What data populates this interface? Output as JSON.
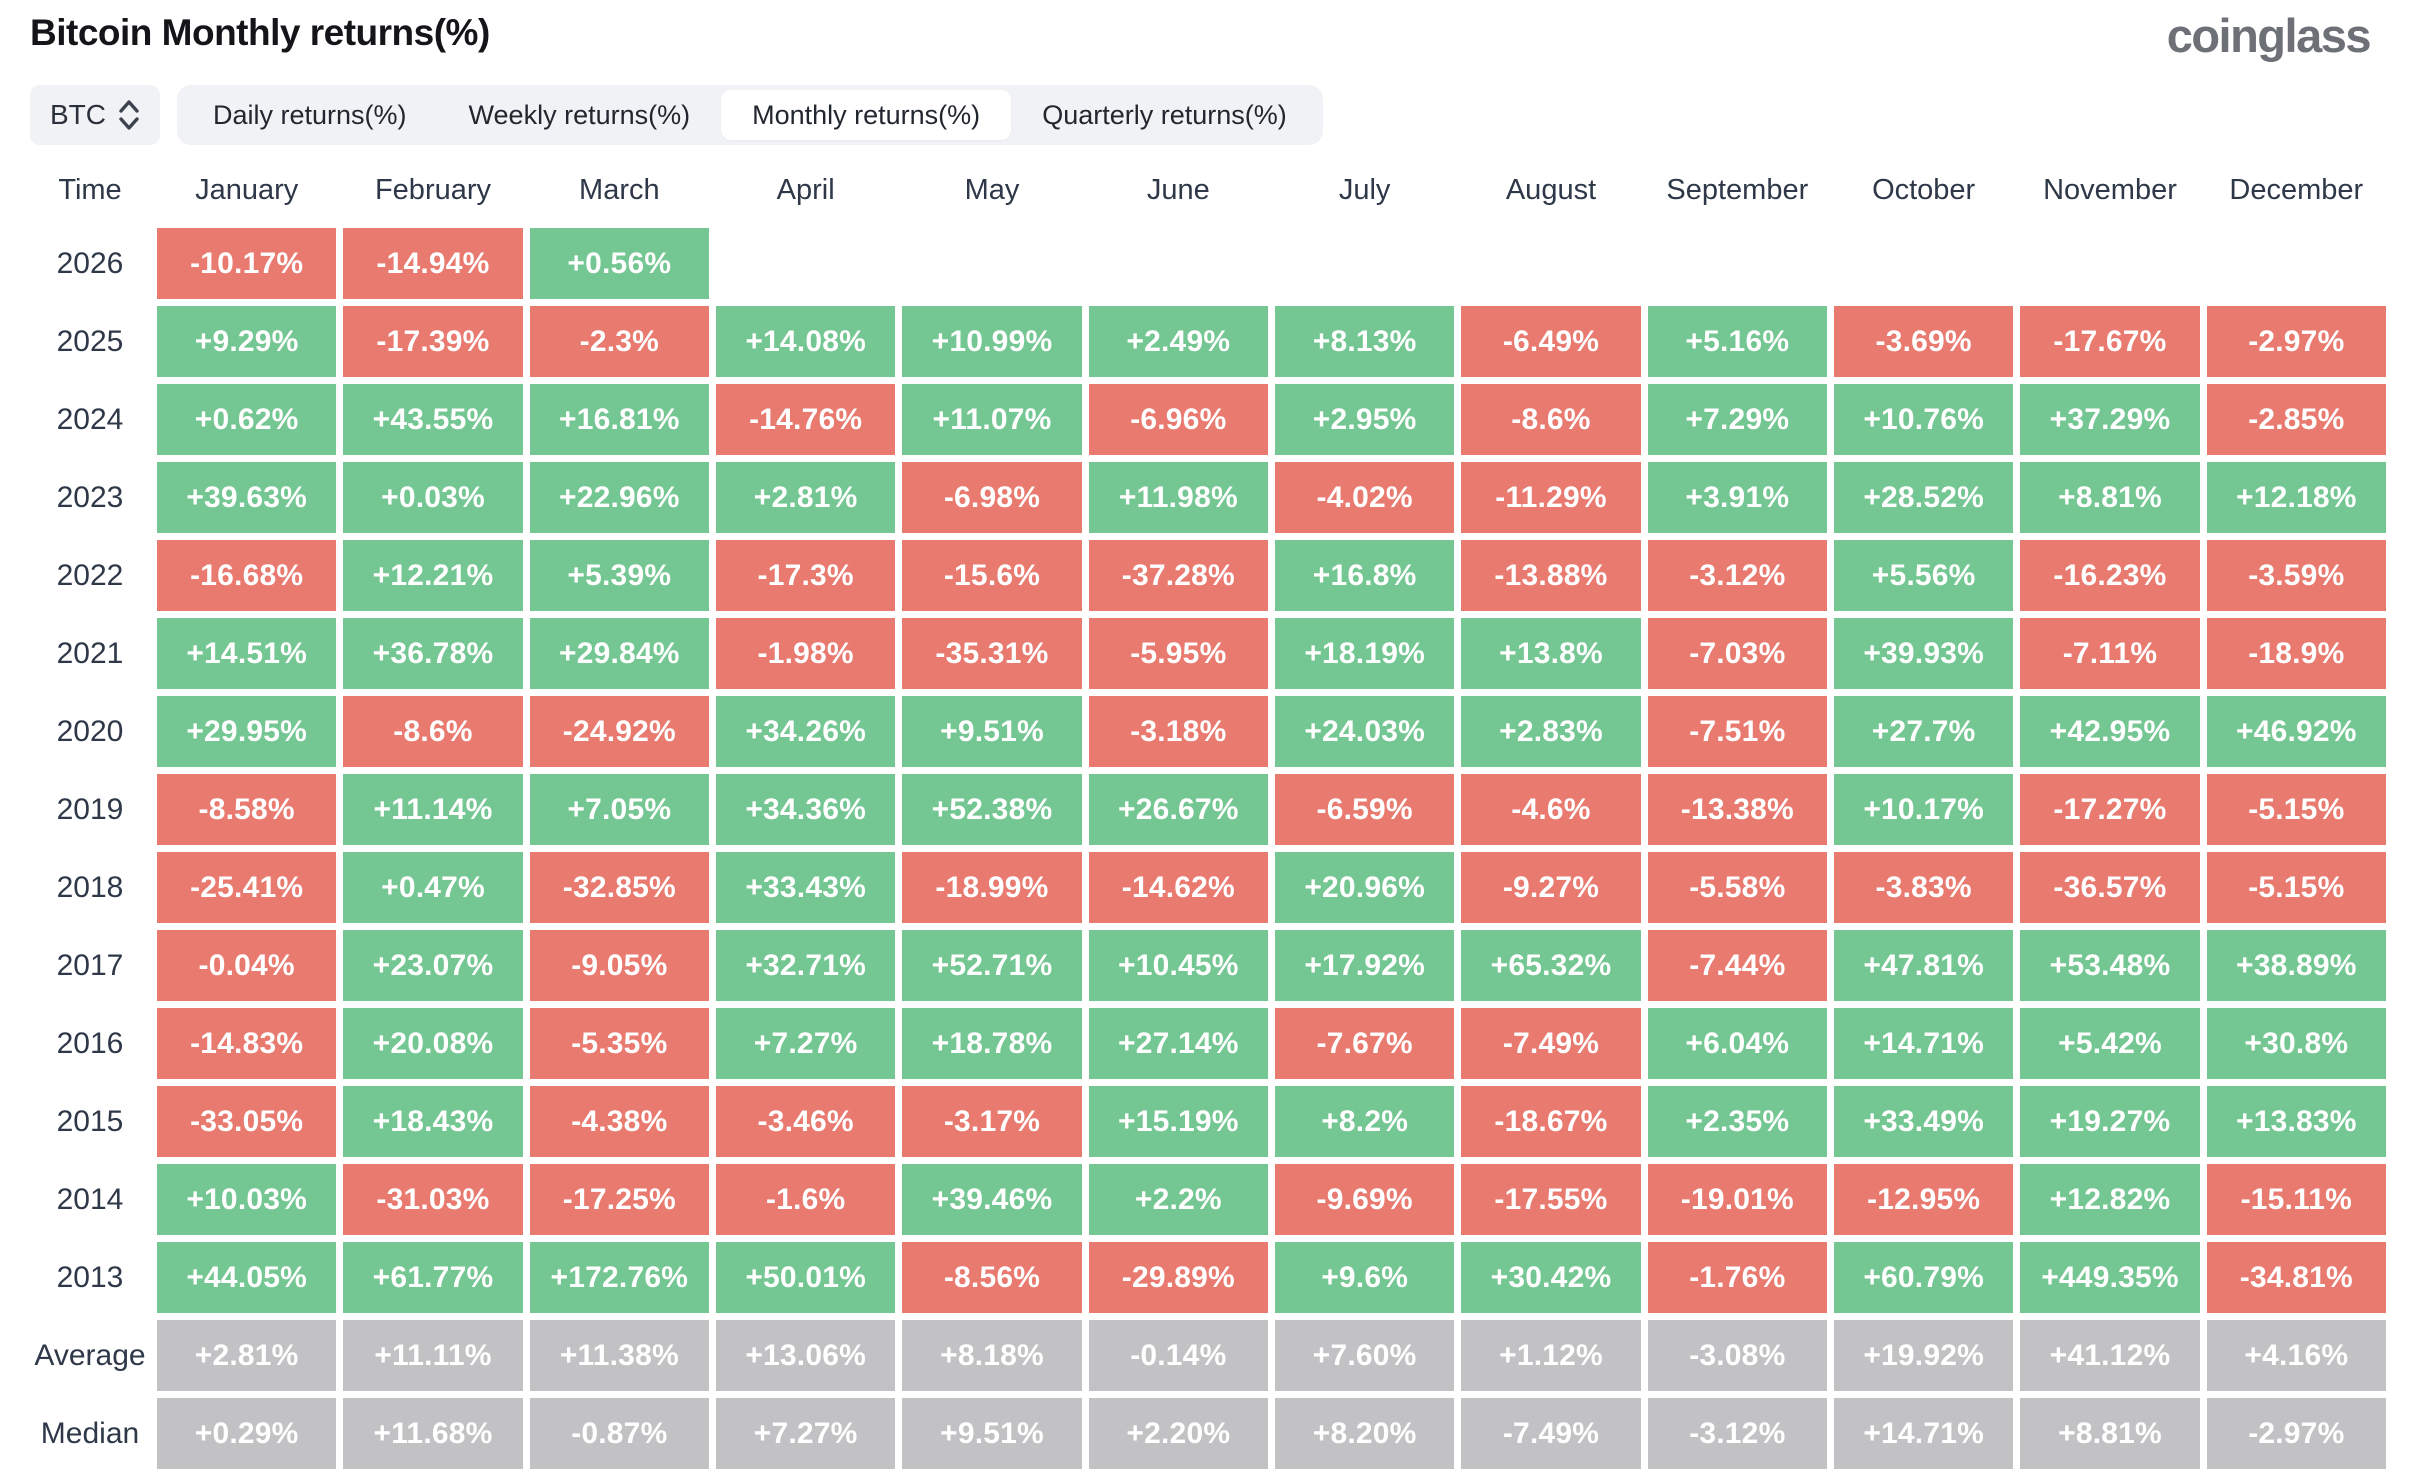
{
  "header": {
    "title": "Bitcoin Monthly returns(%)",
    "logo": "coinglass"
  },
  "controls": {
    "symbol_select": {
      "label": "BTC",
      "icon": "updown-chevrons-icon"
    },
    "tabs": [
      {
        "label": "Daily returns(%)",
        "active": false
      },
      {
        "label": "Weekly returns(%)",
        "active": false
      },
      {
        "label": "Monthly returns(%)",
        "active": true
      },
      {
        "label": "Quarterly returns(%)",
        "active": false
      }
    ]
  },
  "table": {
    "time_header": "Time",
    "month_headers": [
      "January",
      "February",
      "March",
      "April",
      "May",
      "June",
      "July",
      "August",
      "September",
      "October",
      "November",
      "December"
    ],
    "rows": [
      {
        "label": "2026",
        "type": "year",
        "values": [
          "-10.17%",
          "-14.94%",
          "+0.56%",
          null,
          null,
          null,
          null,
          null,
          null,
          null,
          null,
          null
        ]
      },
      {
        "label": "2025",
        "type": "year",
        "values": [
          "+9.29%",
          "-17.39%",
          "-2.3%",
          "+14.08%",
          "+10.99%",
          "+2.49%",
          "+8.13%",
          "-6.49%",
          "+5.16%",
          "-3.69%",
          "-17.67%",
          "-2.97%"
        ]
      },
      {
        "label": "2024",
        "type": "year",
        "values": [
          "+0.62%",
          "+43.55%",
          "+16.81%",
          "-14.76%",
          "+11.07%",
          "-6.96%",
          "+2.95%",
          "-8.6%",
          "+7.29%",
          "+10.76%",
          "+37.29%",
          "-2.85%"
        ]
      },
      {
        "label": "2023",
        "type": "year",
        "values": [
          "+39.63%",
          "+0.03%",
          "+22.96%",
          "+2.81%",
          "-6.98%",
          "+11.98%",
          "-4.02%",
          "-11.29%",
          "+3.91%",
          "+28.52%",
          "+8.81%",
          "+12.18%"
        ]
      },
      {
        "label": "2022",
        "type": "year",
        "values": [
          "-16.68%",
          "+12.21%",
          "+5.39%",
          "-17.3%",
          "-15.6%",
          "-37.28%",
          "+16.8%",
          "-13.88%",
          "-3.12%",
          "+5.56%",
          "-16.23%",
          "-3.59%"
        ]
      },
      {
        "label": "2021",
        "type": "year",
        "values": [
          "+14.51%",
          "+36.78%",
          "+29.84%",
          "-1.98%",
          "-35.31%",
          "-5.95%",
          "+18.19%",
          "+13.8%",
          "-7.03%",
          "+39.93%",
          "-7.11%",
          "-18.9%"
        ]
      },
      {
        "label": "2020",
        "type": "year",
        "values": [
          "+29.95%",
          "-8.6%",
          "-24.92%",
          "+34.26%",
          "+9.51%",
          "-3.18%",
          "+24.03%",
          "+2.83%",
          "-7.51%",
          "+27.7%",
          "+42.95%",
          "+46.92%"
        ]
      },
      {
        "label": "2019",
        "type": "year",
        "values": [
          "-8.58%",
          "+11.14%",
          "+7.05%",
          "+34.36%",
          "+52.38%",
          "+26.67%",
          "-6.59%",
          "-4.6%",
          "-13.38%",
          "+10.17%",
          "-17.27%",
          "-5.15%"
        ]
      },
      {
        "label": "2018",
        "type": "year",
        "values": [
          "-25.41%",
          "+0.47%",
          "-32.85%",
          "+33.43%",
          "-18.99%",
          "-14.62%",
          "+20.96%",
          "-9.27%",
          "-5.58%",
          "-3.83%",
          "-36.57%",
          "-5.15%"
        ]
      },
      {
        "label": "2017",
        "type": "year",
        "values": [
          "-0.04%",
          "+23.07%",
          "-9.05%",
          "+32.71%",
          "+52.71%",
          "+10.45%",
          "+17.92%",
          "+65.32%",
          "-7.44%",
          "+47.81%",
          "+53.48%",
          "+38.89%"
        ]
      },
      {
        "label": "2016",
        "type": "year",
        "values": [
          "-14.83%",
          "+20.08%",
          "-5.35%",
          "+7.27%",
          "+18.78%",
          "+27.14%",
          "-7.67%",
          "-7.49%",
          "+6.04%",
          "+14.71%",
          "+5.42%",
          "+30.8%"
        ]
      },
      {
        "label": "2015",
        "type": "year",
        "values": [
          "-33.05%",
          "+18.43%",
          "-4.38%",
          "-3.46%",
          "-3.17%",
          "+15.19%",
          "+8.2%",
          "-18.67%",
          "+2.35%",
          "+33.49%",
          "+19.27%",
          "+13.83%"
        ]
      },
      {
        "label": "2014",
        "type": "year",
        "values": [
          "+10.03%",
          "-31.03%",
          "-17.25%",
          "-1.6%",
          "+39.46%",
          "+2.2%",
          "-9.69%",
          "-17.55%",
          "-19.01%",
          "-12.95%",
          "+12.82%",
          "-15.11%"
        ]
      },
      {
        "label": "2013",
        "type": "year",
        "values": [
          "+44.05%",
          "+61.77%",
          "+172.76%",
          "+50.01%",
          "-8.56%",
          "-29.89%",
          "+9.6%",
          "+30.42%",
          "-1.76%",
          "+60.79%",
          "+449.35%",
          "-34.81%"
        ]
      },
      {
        "label": "Average",
        "type": "summary",
        "values": [
          "+2.81%",
          "+11.11%",
          "+11.38%",
          "+13.06%",
          "+8.18%",
          "-0.14%",
          "+7.60%",
          "+1.12%",
          "-3.08%",
          "+19.92%",
          "+41.12%",
          "+4.16%"
        ]
      },
      {
        "label": "Median",
        "type": "summary",
        "values": [
          "+0.29%",
          "+11.68%",
          "-0.87%",
          "+7.27%",
          "+9.51%",
          "+2.20%",
          "+8.20%",
          "-7.49%",
          "-3.12%",
          "+14.71%",
          "+8.81%",
          "-2.97%"
        ]
      }
    ]
  },
  "colors": {
    "positive": "#74c792",
    "negative": "#e97a70",
    "summary": "#c2c2c4",
    "tab_background": "#f1f2f5",
    "cell_text": "#ffffff",
    "header_text": "#2e3848"
  }
}
